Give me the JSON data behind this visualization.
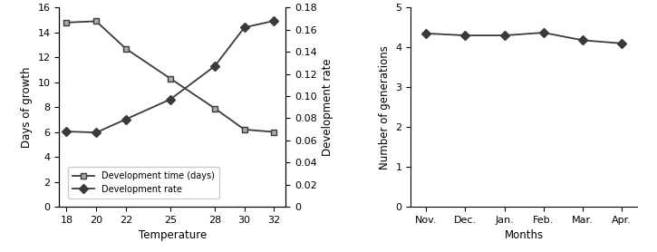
{
  "left": {
    "temperatures": [
      18,
      20,
      22,
      25,
      28,
      30,
      32
    ],
    "dev_time": [
      14.8,
      14.9,
      12.7,
      10.3,
      7.9,
      6.2,
      6.0
    ],
    "dev_rate": [
      0.068,
      0.067,
      0.079,
      0.097,
      0.127,
      0.162,
      0.168
    ],
    "xlabel": "Temperature",
    "ylabel_left": "Days of growth",
    "ylabel_right": "Development rate",
    "ylim_left": [
      0,
      16
    ],
    "ylim_right": [
      0,
      0.18
    ],
    "yticks_left": [
      0,
      2,
      4,
      6,
      8,
      10,
      12,
      14,
      16
    ],
    "yticks_right": [
      0,
      0.02,
      0.04,
      0.06,
      0.08,
      0.1,
      0.12,
      0.14,
      0.16,
      0.18
    ],
    "ytick_labels_right": [
      "0",
      "0.02",
      "0.04",
      "0.06",
      "0.08",
      "0.10",
      "0.12",
      "0.14",
      "0.16",
      "0.18"
    ],
    "legend_dev_time": "Development time (days)",
    "legend_dev_rate": "Development rate"
  },
  "right": {
    "months": [
      "Nov.",
      "Dec.",
      "Jan.",
      "Feb.",
      "Mar.",
      "Apr."
    ],
    "generations": [
      4.35,
      4.3,
      4.3,
      4.37,
      4.18,
      4.1
    ],
    "xlabel": "Months",
    "ylabel": "Number of generations",
    "ylim": [
      0,
      5
    ],
    "yticks": [
      0,
      1,
      2,
      3,
      4,
      5
    ]
  },
  "line_color": "#3a3a3a",
  "marker_square": "s",
  "marker_diamond": "D",
  "marker_size": 5,
  "marker_color_gray": "#aaaaaa",
  "marker_color_dark": "#3a3a3a",
  "bg_color": "#ffffff",
  "linewidth": 1.3
}
